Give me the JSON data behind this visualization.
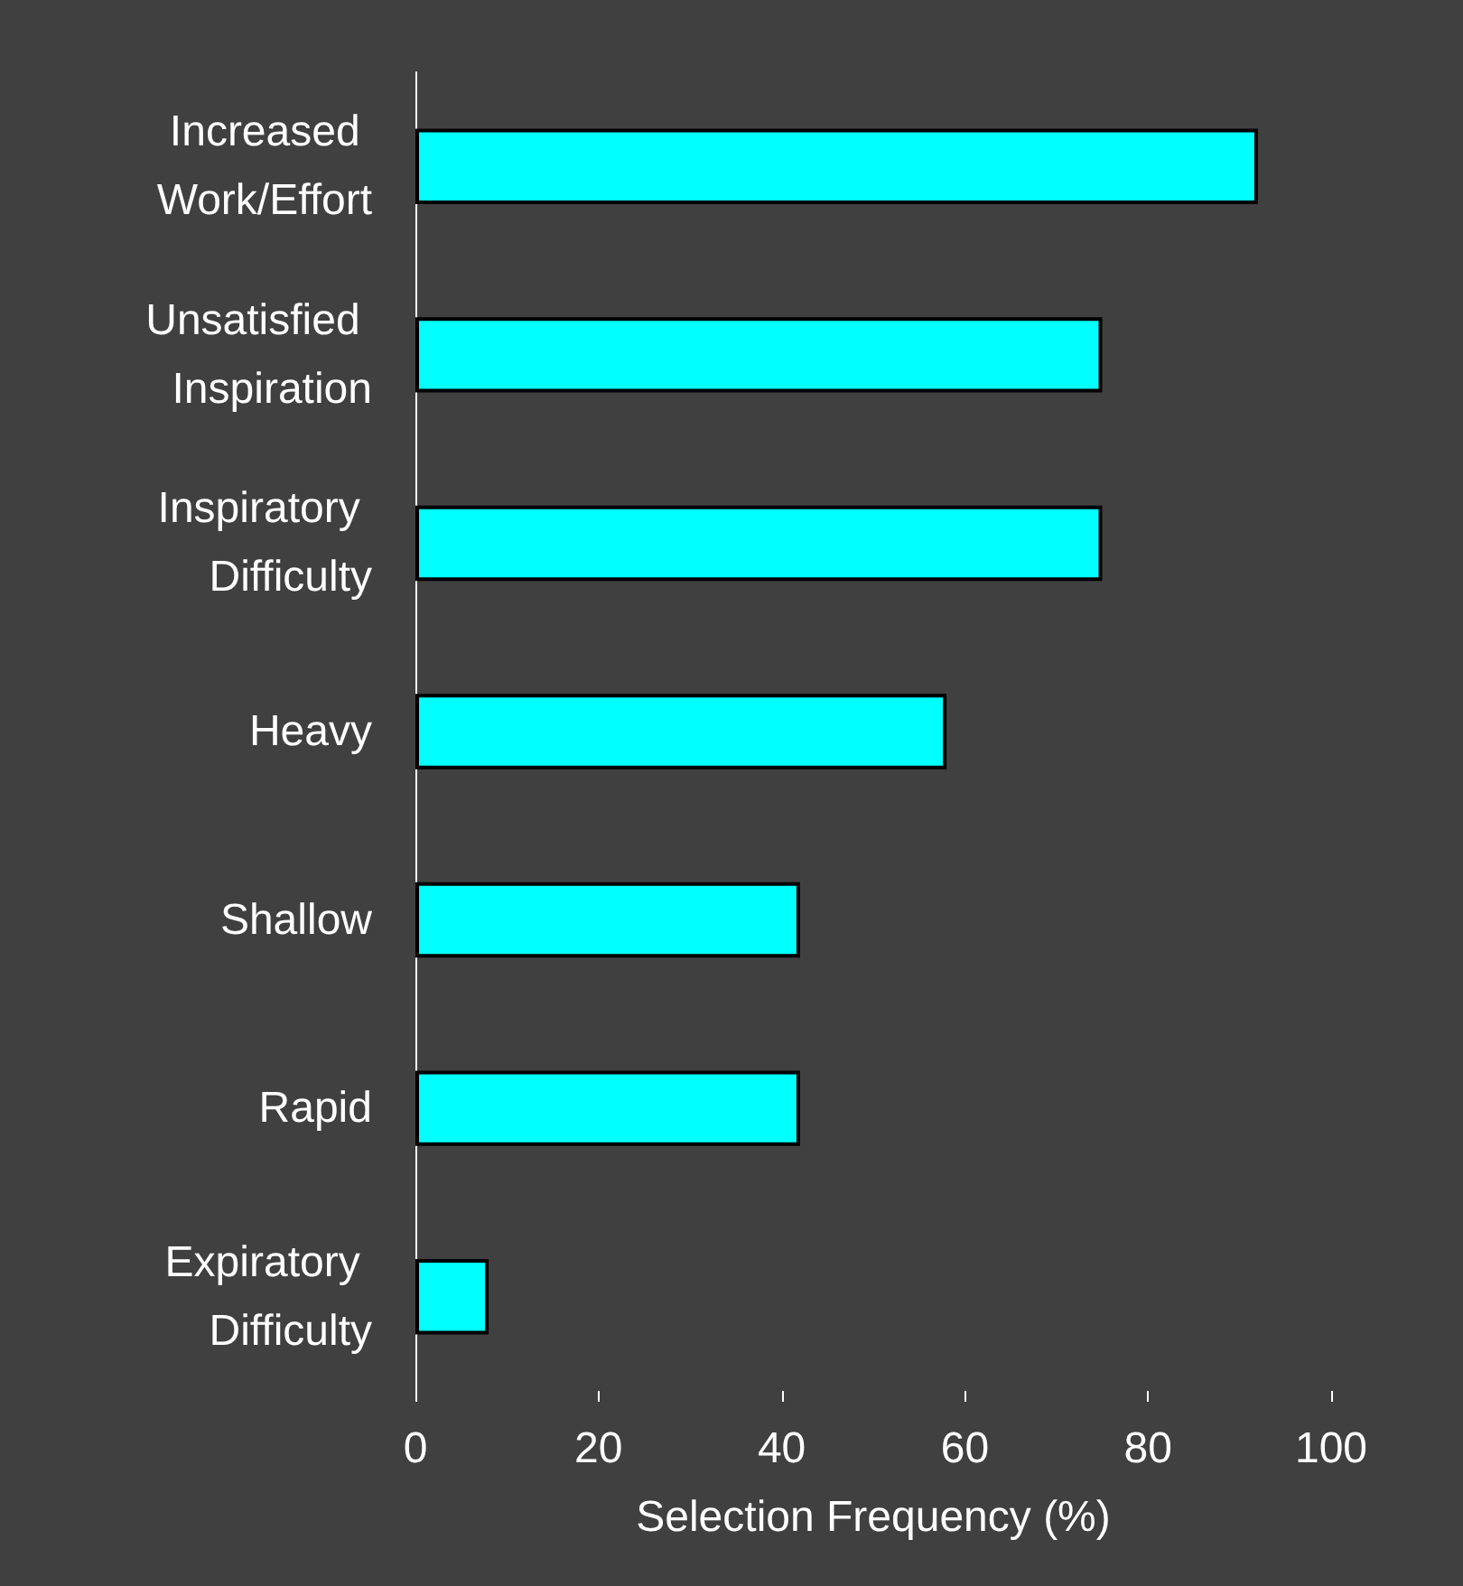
{
  "chart_data": {
    "type": "bar",
    "orientation": "horizontal",
    "xlabel": "Selection Frequency (%)",
    "categories": [
      "Increased Work/Effort",
      "Unsatisfied Inspiration",
      "Inspiratory Difficulty",
      "Heavy",
      "Shallow",
      "Rapid",
      "Expiratory Difficulty"
    ],
    "values": [
      92,
      75,
      75,
      58,
      42,
      42,
      8
    ],
    "color": "#00ffff",
    "xlim": [
      0,
      100
    ],
    "xticks": [
      0,
      20,
      40,
      60,
      80,
      100
    ]
  }
}
